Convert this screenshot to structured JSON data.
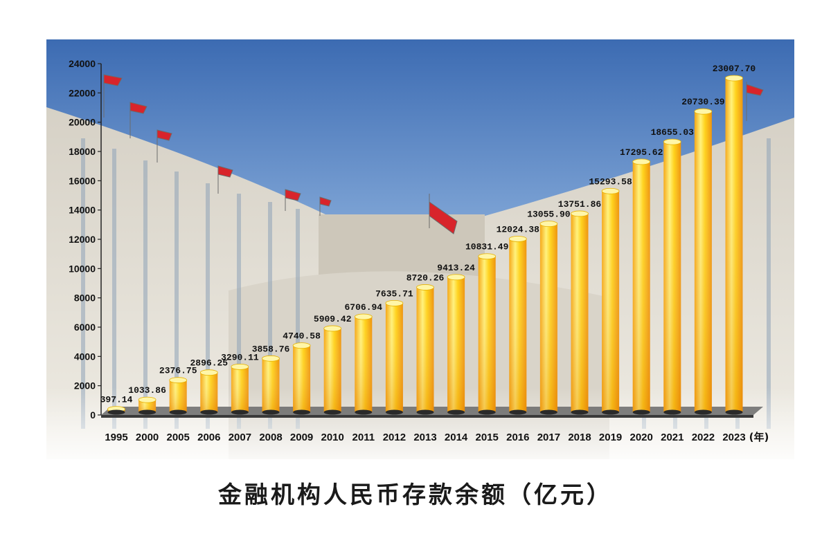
{
  "chart_data": {
    "type": "bar",
    "title": "金融机构人民币存款余额（亿元）",
    "xlabel": "",
    "ylabel": "",
    "x_unit": "(年)",
    "ylim": [
      0,
      24000
    ],
    "yticks": [
      0,
      2000,
      4000,
      6000,
      8000,
      10000,
      12000,
      14000,
      16000,
      18000,
      20000,
      22000,
      24000
    ],
    "grid": false,
    "legend": "none",
    "categories": [
      "1995",
      "2000",
      "2005",
      "2006",
      "2007",
      "2008",
      "2009",
      "2010",
      "2011",
      "2012",
      "2013",
      "2014",
      "2015",
      "2016",
      "2017",
      "2018",
      "2019",
      "2020",
      "2021",
      "2022",
      "2023"
    ],
    "values": [
      397.14,
      1033.86,
      2376.75,
      2896.25,
      3290.11,
      3858.76,
      4740.58,
      5909.42,
      6706.94,
      7635.71,
      8720.26,
      9413.24,
      10831.49,
      12024.38,
      13055.9,
      13751.86,
      15293.58,
      17295.62,
      18655.03,
      20730.39,
      23007.7
    ],
    "value_labels": [
      "397.14",
      "1033.86",
      "2376.75",
      "2896.25",
      "3290.11",
      "3858.76",
      "4740.58",
      "5909.42",
      "6706.94",
      "7635.71",
      "8720.26",
      "9413.24",
      "10831.49",
      "12024.38",
      "13055.90",
      "13751.86",
      "15293.58",
      "17295.62",
      "18655.03",
      "20730.39",
      "23007.70"
    ],
    "colors": {
      "bar_light": "#fff27a",
      "bar_mid": "#ffd21a",
      "bar_dark": "#f29a0e",
      "sky_top": "#3f6fb4",
      "sky_bottom": "#a9c6e6",
      "building": "#c7c1b4",
      "floor": "#5a5a5a",
      "flag": "#d8242b"
    }
  }
}
